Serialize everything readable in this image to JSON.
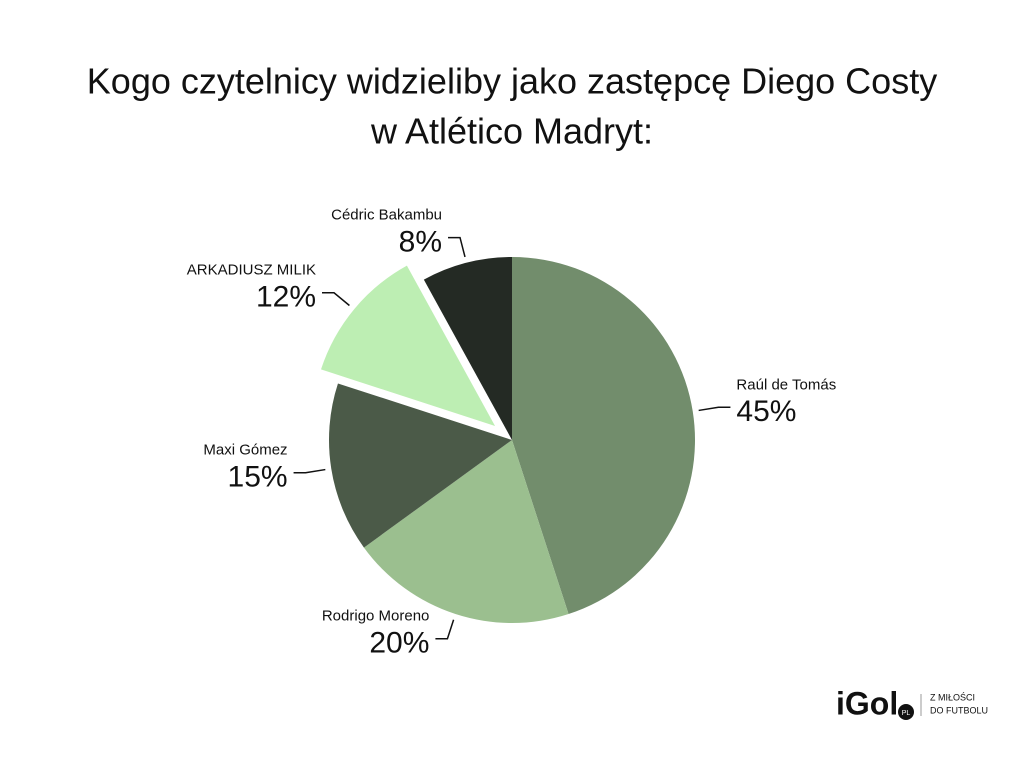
{
  "chart_data": {
    "type": "pie",
    "title": [
      "Kogo czytelnicy widzieliby jako zastępcę Diego Costy",
      "w Atlético Madryt:"
    ],
    "categories": [
      "Raúl de Tomás",
      "Rodrigo Moreno",
      "Maxi Gómez",
      "ARKADIUSZ MILIK",
      "Cédric Bakambu"
    ],
    "values": [
      45,
      20,
      15,
      12,
      8
    ],
    "value_labels": [
      "45%",
      "20%",
      "15%",
      "12%",
      "8%"
    ],
    "colors": [
      "#728d6c",
      "#9bbf8f",
      "#4b5a48",
      "#bdeeb3",
      "#242a24"
    ],
    "explode": [
      false,
      false,
      false,
      true,
      false
    ]
  },
  "logo": {
    "name": "iGol",
    "badge": "PL",
    "tagline": [
      "Z MIŁOŚCI",
      "DO FUTBOLU"
    ]
  }
}
